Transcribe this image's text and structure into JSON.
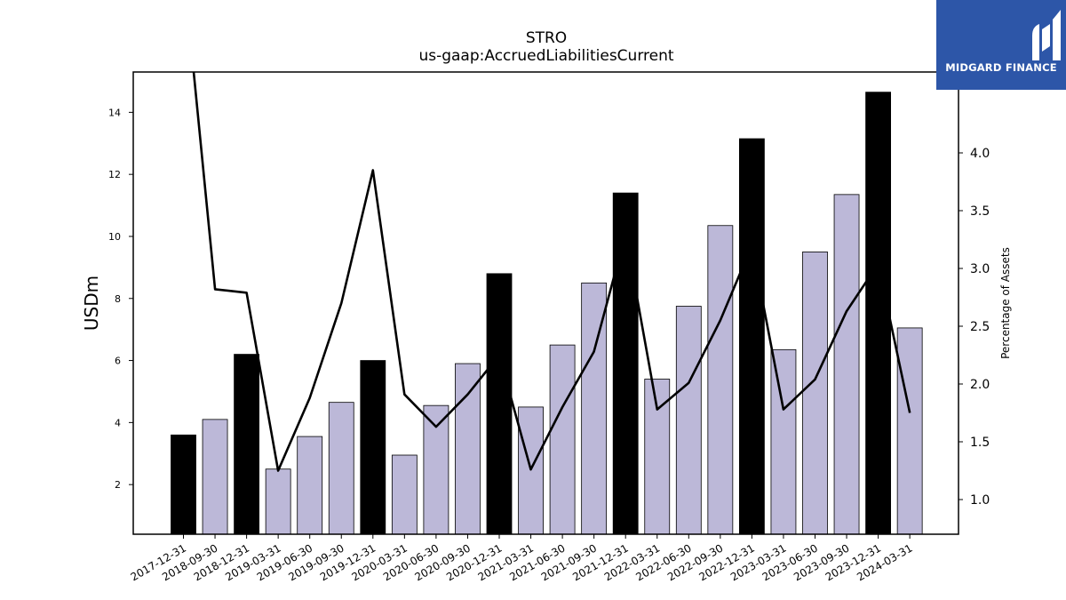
{
  "logo": {
    "text": "MIDGARD FINANCE",
    "icon": "midgard-m-icon",
    "color": "#2d56a8"
  },
  "chart_data": {
    "type": "bar",
    "title": "STRO",
    "subtitle": "us-gaap:AccruedLiabilitiesCurrent",
    "ylabel": "USDm",
    "y2label": "Percentage of Assets",
    "ylim": [
      0.4,
      15.3
    ],
    "y2lim": [
      0.7,
      4.7
    ],
    "yticks": [
      2,
      4,
      6,
      8,
      10,
      12,
      14
    ],
    "y2ticks": [
      "1.0",
      "1.5",
      "2.0",
      "2.5",
      "3.0",
      "3.5",
      "4.0"
    ],
    "categories": [
      "2017-12-31",
      "2018-09-30",
      "2018-12-31",
      "2019-03-31",
      "2019-06-30",
      "2019-09-30",
      "2019-12-31",
      "2020-03-31",
      "2020-06-30",
      "2020-09-30",
      "2020-12-31",
      "2021-03-31",
      "2021-06-30",
      "2021-09-30",
      "2021-12-31",
      "2022-03-31",
      "2022-06-30",
      "2022-09-30",
      "2022-12-31",
      "2023-03-31",
      "2023-06-30",
      "2023-09-30",
      "2023-12-31",
      "2024-03-31"
    ],
    "series": [
      {
        "kind": "bar",
        "values": [
          3.6,
          4.1,
          6.2,
          2.5,
          3.55,
          4.65,
          6.0,
          2.95,
          4.55,
          5.9,
          8.8,
          4.5,
          6.5,
          8.5,
          11.4,
          5.4,
          7.75,
          10.35,
          13.15,
          6.35,
          9.5,
          11.35,
          14.65,
          7.05
        ],
        "colors": [
          "#000000",
          "#bcb8d8",
          "#000000",
          "#bcb8d8",
          "#bcb8d8",
          "#bcb8d8",
          "#000000",
          "#bcb8d8",
          "#bcb8d8",
          "#bcb8d8",
          "#000000",
          "#bcb8d8",
          "#bcb8d8",
          "#bcb8d8",
          "#000000",
          "#bcb8d8",
          "#bcb8d8",
          "#bcb8d8",
          "#000000",
          "#bcb8d8",
          "#bcb8d8",
          "#bcb8d8",
          "#000000",
          "#bcb8d8"
        ]
      },
      {
        "kind": "line",
        "axis": "secondary",
        "color": "#000000",
        "values": [
          5.6,
          2.82,
          2.79,
          1.25,
          1.88,
          2.7,
          3.85,
          1.91,
          1.63,
          1.91,
          2.25,
          1.26,
          1.8,
          2.28,
          3.3,
          1.78,
          2.01,
          2.55,
          3.2,
          1.78,
          2.04,
          2.63,
          3.04,
          1.75
        ]
      }
    ],
    "grid": false,
    "legend": "none"
  }
}
